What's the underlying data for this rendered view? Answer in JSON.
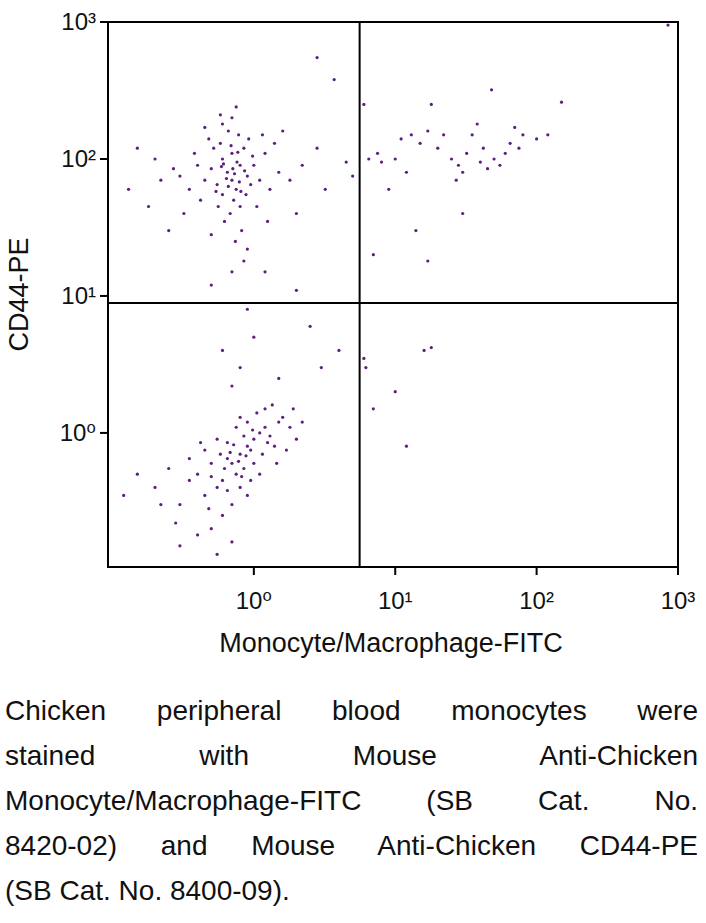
{
  "chart_data": {
    "type": "scatter",
    "x_label": "Monocyte/Macrophage-FITC",
    "y_label": "CD44-PE",
    "log": true,
    "xlim": [
      0.093,
      1000
    ],
    "ylim": [
      0.105,
      1000
    ],
    "xticks": [
      {
        "value": 1,
        "label": "10⁰"
      },
      {
        "value": 10,
        "label": "10¹"
      },
      {
        "value": 100,
        "label": "10²"
      },
      {
        "value": 1000,
        "label": "10³"
      }
    ],
    "yticks": [
      {
        "value": 1,
        "label": "10⁰"
      },
      {
        "value": 10,
        "label": "10¹"
      },
      {
        "value": 100,
        "label": "10²"
      },
      {
        "value": 1000,
        "label": "10³"
      }
    ],
    "gates": {
      "x": 5.6,
      "y": 8.9
    },
    "series": [
      {
        "color": "#5c1f7e",
        "marker": "circle",
        "x": [
          0.7,
          0.6,
          0.8,
          0.75,
          0.65,
          0.9,
          0.55,
          0.7,
          0.8,
          0.6,
          0.5,
          0.85,
          0.72,
          0.68,
          0.95,
          0.45,
          0.58,
          0.78,
          0.62,
          0.88,
          1.0,
          1.1,
          0.4,
          0.35,
          0.3,
          0.42,
          0.52,
          0.66,
          0.74,
          0.82,
          1.2,
          1.3,
          1.5,
          0.48,
          0.56,
          0.92,
          0.7,
          0.6,
          1.05,
          0.38,
          0.27,
          0.22,
          0.2,
          0.32,
          0.76,
          0.64,
          0.86,
          0.54,
          0.71,
          0.79,
          0.69,
          0.61,
          1.15,
          1.8,
          2.2,
          2.0,
          0.15,
          0.13,
          0.25,
          0.5,
          0.9,
          0.85,
          0.7,
          1.4,
          1.6,
          0.45,
          0.75,
          0.58,
          3.2,
          4.5,
          5.0,
          2.8,
          0.18,
          1.25,
          0.98,
          0.66,
          0.73,
          0.59,
          0.81,
          0.77,
          0.8,
          0.7,
          0.9,
          0.75,
          0.65,
          1.0,
          1.1,
          0.6,
          0.85,
          1.2,
          0.95,
          0.55,
          0.5,
          1.3,
          1.5,
          0.45,
          0.4,
          0.7,
          0.8,
          1.4,
          1.6,
          1.8,
          0.35,
          0.3,
          0.25,
          0.2,
          0.15,
          0.12,
          0.6,
          0.5,
          0.4,
          0.65,
          0.9,
          1.05,
          1.2,
          0.75,
          0.55,
          0.85,
          1.0,
          1.15,
          0.68,
          0.78,
          0.88,
          0.72,
          0.62,
          0.98,
          1.25,
          0.58,
          0.82,
          0.48,
          2.0,
          2.2,
          0.3,
          0.7,
          0.55,
          0.9,
          1.7,
          1.35,
          0.45,
          0.35,
          0.8,
          0.95,
          1.1,
          0.65,
          0.5,
          0.42,
          0.28,
          0.22,
          1.9,
          1.45,
          0.8,
          1.0,
          0.6,
          1.5,
          0.9,
          2.5,
          3.0,
          0.5,
          1.2,
          4.0,
          0.7,
          2.0,
          6.5,
          7.5,
          8,
          10,
          11,
          13,
          15,
          17,
          20,
          22,
          25,
          28,
          30,
          32,
          35,
          40,
          42,
          45,
          50,
          55,
          60,
          65,
          70,
          75,
          80,
          100,
          150,
          120,
          27,
          38,
          18,
          48,
          9,
          12,
          14,
          17,
          6,
          850,
          7,
          30,
          6,
          6.2,
          10,
          16,
          18,
          12,
          7,
          2.8,
          3.7
        ],
        "values": [
          70,
          55,
          90,
          60,
          80,
          75,
          65,
          110,
          45,
          100,
          85,
          120,
          50,
          40,
          65,
          70,
          130,
          150,
          35,
          55,
          90,
          70,
          90,
          60,
          75,
          50,
          120,
          160,
          25,
          30,
          110,
          60,
          80,
          140,
          45,
          140,
          200,
          180,
          45,
          110,
          85,
          70,
          100,
          40,
          95,
          72,
          82,
          58,
          85,
          68,
          125,
          92,
          150,
          70,
          90,
          40,
          120,
          60,
          30,
          28,
          22,
          18,
          15,
          130,
          160,
          170,
          240,
          210,
          60,
          95,
          75,
          120,
          45,
          35,
          105,
          63,
          78,
          88,
          58,
          112,
          0.7,
          0.6,
          0.8,
          0.5,
          0.65,
          0.9,
          1.0,
          0.45,
          0.55,
          1.1,
          0.75,
          0.4,
          0.6,
          0.95,
          1.2,
          0.35,
          0.5,
          0.3,
          0.4,
          0.8,
          1.3,
          1.1,
          0.45,
          0.3,
          0.55,
          0.4,
          0.5,
          0.35,
          0.25,
          0.2,
          0.18,
          0.85,
          1.2,
          1.4,
          1.5,
          1.1,
          0.9,
          0.95,
          0.6,
          0.7,
          0.72,
          0.62,
          0.68,
          0.82,
          0.55,
          1.05,
          0.85,
          0.7,
          0.48,
          0.28,
          0.9,
          1.2,
          0.15,
          0.16,
          0.13,
          0.35,
          0.75,
          1.6,
          0.75,
          0.65,
          1.3,
          0.45,
          0.5,
          0.38,
          0.48,
          0.85,
          0.22,
          0.3,
          1.5,
          0.6,
          3,
          5,
          4,
          2.5,
          8,
          6,
          3,
          12,
          15,
          4,
          2.2,
          11,
          100,
          110,
          95,
          100,
          140,
          150,
          130,
          160,
          120,
          150,
          100,
          90,
          80,
          110,
          150,
          95,
          120,
          85,
          100,
          90,
          110,
          130,
          170,
          120,
          150,
          140,
          260,
          150,
          70,
          180,
          250,
          320,
          60,
          80,
          30,
          18,
          250,
          950,
          20,
          40,
          3.5,
          3,
          2,
          4,
          4.2,
          0.8,
          1.5,
          550,
          380
        ]
      }
    ]
  },
  "caption_lines": [
    "Chicken peripheral blood monocytes were",
    "stained with Mouse Anti-Chicken",
    "Monocyte/Macrophage-FITC (SB Cat. No.",
    "8420-02) and Mouse Anti-Chicken CD44-PE",
    "(SB Cat. No. 8400-09)."
  ]
}
